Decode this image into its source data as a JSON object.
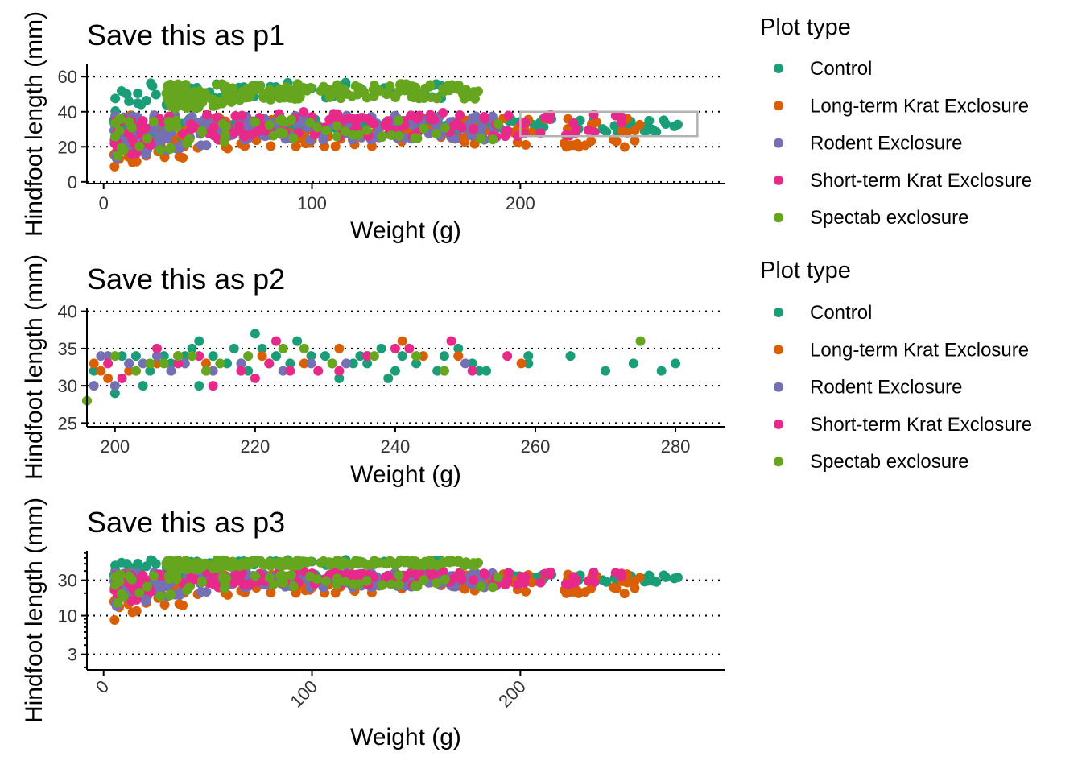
{
  "legend": {
    "title": "Plot type",
    "entries": [
      {
        "name": "Control",
        "color": "#1b9e77"
      },
      {
        "name": "Long-term Krat Exclosure",
        "color": "#d95f02"
      },
      {
        "name": "Rodent Exclosure",
        "color": "#7570b3"
      },
      {
        "name": "Short-term Krat Exclosure",
        "color": "#e7298a"
      },
      {
        "name": "Spectab exclosure",
        "color": "#66a61e"
      }
    ]
  },
  "chart_data": [
    {
      "id": "p1",
      "type": "scatter",
      "title": "Save this as p1",
      "xlabel": "Weight (g)",
      "ylabel": "Hindfoot length (mm)",
      "xlim": [
        -8,
        298
      ],
      "ylim": [
        -1,
        67
      ],
      "x_ticks": [
        0,
        100,
        200
      ],
      "y_ticks": [
        0,
        20,
        40,
        60
      ],
      "grid": "horizontal dotted at y ticks",
      "zoom_box": {
        "x": [
          200,
          285
        ],
        "y": [
          26,
          40
        ]
      },
      "legend_placement": "right",
      "clusters": [
        {
          "series": "Control",
          "x": [
            5,
            280
          ],
          "y": [
            22,
            36
          ],
          "n": 180
        },
        {
          "series": "Control",
          "x": [
            5,
            170
          ],
          "y": [
            40,
            57
          ],
          "n": 60
        },
        {
          "series": "Long-term Krat Exclosure",
          "x": [
            5,
            260
          ],
          "y": [
            5,
            38
          ],
          "n": 140
        },
        {
          "series": "Rodent Exclosure",
          "x": [
            5,
            190
          ],
          "y": [
            12,
            38
          ],
          "n": 220
        },
        {
          "series": "Short-term Krat Exclosure",
          "x": [
            5,
            250
          ],
          "y": [
            14,
            40
          ],
          "n": 140
        },
        {
          "series": "Spectab exclosure",
          "x": [
            30,
            180
          ],
          "y": [
            40,
            56
          ],
          "n": 200
        },
        {
          "series": "Spectab exclosure",
          "x": [
            5,
            200
          ],
          "y": [
            14,
            36
          ],
          "n": 60
        }
      ]
    },
    {
      "id": "p2",
      "type": "scatter",
      "title": "Save this as p2",
      "xlabel": "Weight (g)",
      "ylabel": "Hindfoot length (mm)",
      "xlim": [
        196,
        287
      ],
      "ylim": [
        24.5,
        40.5
      ],
      "x_ticks": [
        200,
        220,
        240,
        260,
        280
      ],
      "y_ticks": [
        25,
        30,
        35,
        40
      ],
      "grid": "horizontal dotted at y ticks",
      "points": {
        "Control": [
          [
            197,
            32
          ],
          [
            200,
            29
          ],
          [
            201,
            34
          ],
          [
            202,
            33
          ],
          [
            203,
            34
          ],
          [
            204,
            30
          ],
          [
            205,
            32
          ],
          [
            207,
            34
          ],
          [
            208,
            33
          ],
          [
            210,
            34
          ],
          [
            211,
            35
          ],
          [
            212,
            36
          ],
          [
            212,
            30
          ],
          [
            214,
            34
          ],
          [
            216,
            33
          ],
          [
            217,
            35
          ],
          [
            218,
            33
          ],
          [
            219,
            32
          ],
          [
            220,
            37
          ],
          [
            221,
            35
          ],
          [
            222,
            33
          ],
          [
            223,
            34
          ],
          [
            225,
            33
          ],
          [
            226,
            36
          ],
          [
            228,
            34
          ],
          [
            230,
            34
          ],
          [
            231,
            33
          ],
          [
            232,
            31
          ],
          [
            234,
            33
          ],
          [
            235,
            34
          ],
          [
            236,
            33
          ],
          [
            238,
            35
          ],
          [
            239,
            31
          ],
          [
            240,
            32
          ],
          [
            241,
            34
          ],
          [
            243,
            33
          ],
          [
            246,
            32
          ],
          [
            247,
            34
          ],
          [
            249,
            35
          ],
          [
            251,
            33
          ],
          [
            252,
            32
          ],
          [
            253,
            32
          ],
          [
            259,
            34
          ],
          [
            259,
            33
          ],
          [
            265,
            34
          ],
          [
            270,
            32
          ],
          [
            274,
            33
          ],
          [
            278,
            32
          ],
          [
            280,
            33
          ]
        ],
        "Long-term Krat Exclosure": [
          [
            197,
            33
          ],
          [
            198,
            32
          ],
          [
            199,
            31
          ],
          [
            202,
            32
          ],
          [
            206,
            33
          ],
          [
            209,
            34
          ],
          [
            213,
            33
          ],
          [
            221,
            34
          ],
          [
            227,
            33
          ],
          [
            232,
            35
          ],
          [
            241,
            36
          ],
          [
            244,
            34
          ],
          [
            249,
            34
          ],
          [
            258,
            33
          ]
        ],
        "Rodent Exclosure": [
          [
            197,
            30
          ],
          [
            198,
            34
          ],
          [
            199,
            34
          ],
          [
            200,
            30
          ],
          [
            202,
            33
          ],
          [
            204,
            33
          ],
          [
            206,
            34
          ],
          [
            208,
            32
          ],
          [
            210,
            33
          ],
          [
            214,
            32
          ],
          [
            218,
            33
          ],
          [
            224,
            32
          ],
          [
            228,
            33
          ],
          [
            233,
            33
          ],
          [
            236,
            34
          ],
          [
            242,
            35
          ],
          [
            247,
            32
          ],
          [
            250,
            33
          ]
        ],
        "Short-term Krat Exclosure": [
          [
            199,
            33
          ],
          [
            201,
            31
          ],
          [
            203,
            32
          ],
          [
            206,
            35
          ],
          [
            209,
            33
          ],
          [
            212,
            34
          ],
          [
            214,
            30
          ],
          [
            218,
            32
          ],
          [
            220,
            31
          ],
          [
            222,
            33
          ],
          [
            223,
            36
          ],
          [
            225,
            32
          ],
          [
            229,
            32
          ],
          [
            232,
            32
          ],
          [
            236,
            34
          ],
          [
            240,
            35
          ],
          [
            242,
            35
          ],
          [
            248,
            36
          ],
          [
            251,
            32
          ],
          [
            256,
            34
          ]
        ],
        "Spectab exclosure": [
          [
            196,
            28
          ],
          [
            200,
            34
          ],
          [
            203,
            32
          ],
          [
            205,
            33
          ],
          [
            207,
            33
          ],
          [
            209,
            34
          ],
          [
            211,
            34
          ],
          [
            213,
            32
          ],
          [
            215,
            33
          ],
          [
            219,
            34
          ],
          [
            224,
            35
          ],
          [
            227,
            35
          ],
          [
            231,
            33
          ],
          [
            237,
            34
          ],
          [
            243,
            34
          ],
          [
            247,
            32
          ],
          [
            275,
            36
          ]
        ]
      }
    },
    {
      "id": "p3",
      "type": "scatter",
      "title": "Save this as p3",
      "xlabel": "Weight (g)",
      "ylabel": "Hindfoot length (mm)",
      "xlim": [
        -8,
        298
      ],
      "ylim": [
        1.85,
        75
      ],
      "y_scale": "log10",
      "x_ticks": [
        0,
        100,
        200
      ],
      "y_ticks": [
        3,
        10,
        30
      ],
      "grid": "horizontal dotted at y ticks",
      "x_tick_rotation": "45 degrees",
      "clusters": [
        {
          "series": "Control",
          "x": [
            5,
            280
          ],
          "y": [
            22,
            36
          ],
          "n": 180
        },
        {
          "series": "Control",
          "x": [
            5,
            170
          ],
          "y": [
            40,
            57
          ],
          "n": 60
        },
        {
          "series": "Long-term Krat Exclosure",
          "x": [
            5,
            260
          ],
          "y": [
            5,
            38
          ],
          "n": 140
        },
        {
          "series": "Rodent Exclosure",
          "x": [
            5,
            190
          ],
          "y": [
            12,
            38
          ],
          "n": 220
        },
        {
          "series": "Short-term Krat Exclosure",
          "x": [
            5,
            250
          ],
          "y": [
            14,
            40
          ],
          "n": 140
        },
        {
          "series": "Spectab exclosure",
          "x": [
            30,
            180
          ],
          "y": [
            40,
            56
          ],
          "n": 200
        },
        {
          "series": "Spectab exclosure",
          "x": [
            5,
            200
          ],
          "y": [
            14,
            36
          ],
          "n": 60
        }
      ]
    }
  ]
}
